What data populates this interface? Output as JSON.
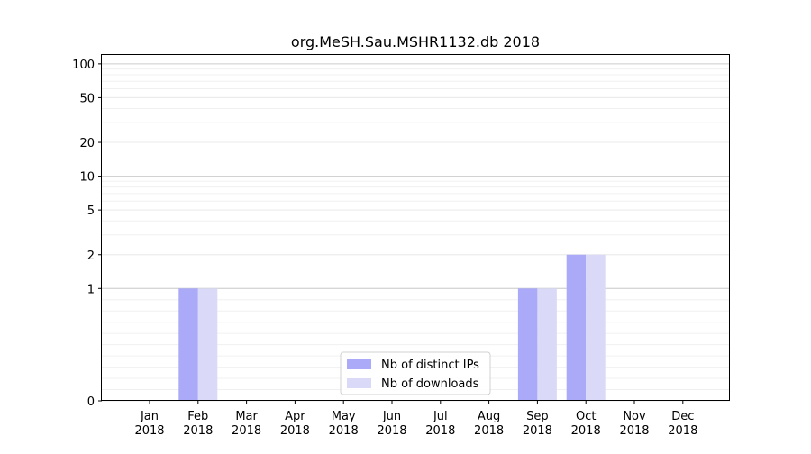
{
  "chart_data": {
    "type": "bar",
    "title": "org.MeSH.Sau.MSHR1132.db 2018",
    "xlabel": "",
    "ylabel": "",
    "yscale": "symlog",
    "ylim": [
      0,
      120
    ],
    "yticks": [
      0,
      1,
      2,
      5,
      10,
      20,
      50,
      100
    ],
    "ytick_labels": [
      "0",
      "1",
      "2",
      "5",
      "10",
      "20",
      "50",
      "100"
    ],
    "categories": [
      [
        "Jan",
        "2018"
      ],
      [
        "Feb",
        "2018"
      ],
      [
        "Mar",
        "2018"
      ],
      [
        "Apr",
        "2018"
      ],
      [
        "May",
        "2018"
      ],
      [
        "Jun",
        "2018"
      ],
      [
        "Jul",
        "2018"
      ],
      [
        "Aug",
        "2018"
      ],
      [
        "Sep",
        "2018"
      ],
      [
        "Oct",
        "2018"
      ],
      [
        "Nov",
        "2018"
      ],
      [
        "Dec",
        "2018"
      ]
    ],
    "series": [
      {
        "name": "Nb of distinct IPs",
        "color": "#aaaaf8",
        "values": [
          0,
          1,
          0,
          0,
          0,
          0,
          0,
          0,
          1,
          2,
          0,
          0
        ]
      },
      {
        "name": "Nb of downloads",
        "color": "#dadaf8",
        "values": [
          0,
          1,
          0,
          0,
          0,
          0,
          0,
          0,
          1,
          2,
          0,
          0
        ]
      }
    ],
    "legend_position": "bottom-center",
    "grid": true
  }
}
